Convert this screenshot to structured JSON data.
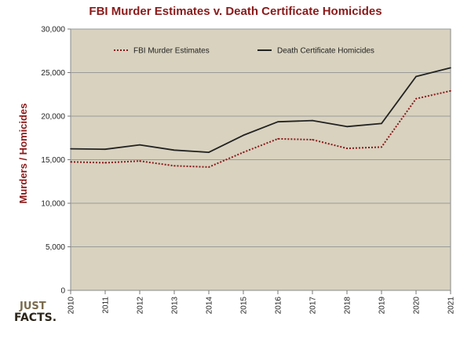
{
  "chart_data": {
    "type": "line",
    "title": "FBI Murder Estimates v. Death Certificate Homicides",
    "xlabel": "",
    "ylabel": "Murders / Homicides",
    "x": [
      "2010",
      "2011",
      "2012",
      "2013",
      "2014",
      "2015",
      "2016",
      "2017",
      "2018",
      "2019",
      "2020",
      "2021"
    ],
    "ylim": [
      0,
      30000
    ],
    "yticks": [
      "0",
      "5,000",
      "10,000",
      "15,000",
      "20,000",
      "25,000",
      "30,000"
    ],
    "grid": true,
    "legend_position": "top",
    "series": [
      {
        "name": "FBI Murder Estimates",
        "style": "dotted",
        "color": "#8b1a1a",
        "values": [
          14750,
          14650,
          14850,
          14300,
          14150,
          15850,
          17400,
          17300,
          16300,
          16450,
          22000,
          22900
        ]
      },
      {
        "name": "Death Certificate Homicides",
        "style": "solid",
        "color": "#222222",
        "values": [
          16250,
          16200,
          16700,
          16100,
          15850,
          17800,
          19350,
          19500,
          18800,
          19150,
          24550,
          25550
        ]
      }
    ]
  },
  "colors": {
    "plot_bg": "#d8d2bf",
    "title": "#8b1a1a"
  },
  "logo": {
    "line1": "JUST",
    "line2": "FACTS."
  }
}
